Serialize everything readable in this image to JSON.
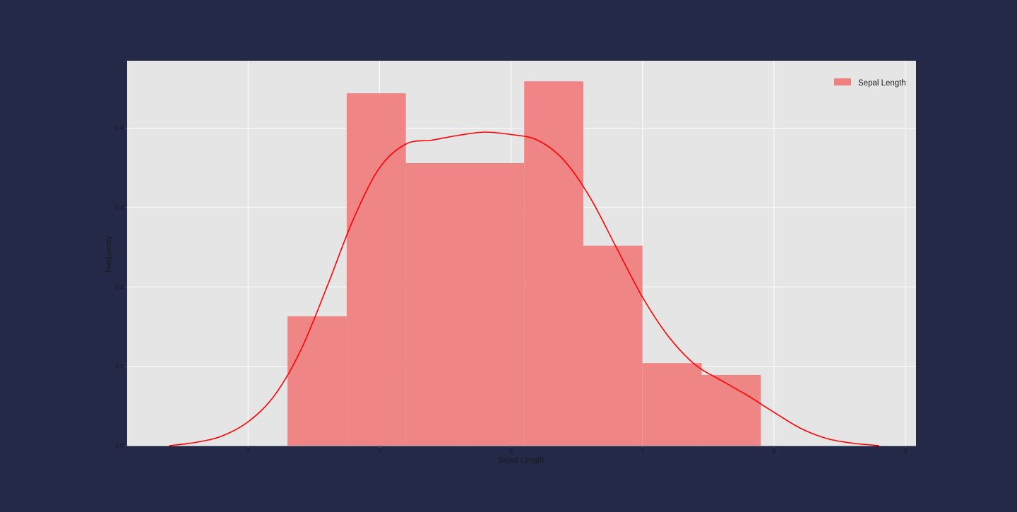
{
  "page": {
    "background": "#232946"
  },
  "chart_data": {
    "type": "bar",
    "subtype": "histogram-with-kde",
    "title": "",
    "xlabel": "Sepal Length",
    "ylabel": "Frequency",
    "xlim": [
      3.08,
      9.08
    ],
    "ylim": [
      0,
      0.485
    ],
    "xticks": [
      4,
      5,
      6,
      7,
      8,
      9
    ],
    "yticks": [
      0.0,
      0.1,
      0.2,
      0.3,
      0.4
    ],
    "grid": true,
    "legend": {
      "placement": "top-right",
      "entries": [
        "Sepal Length"
      ]
    },
    "colors": {
      "plot_background": "#e5e5e5",
      "grid": "#ffffff",
      "bars": "#f08080",
      "kde_line": "#ff0000"
    },
    "series": [
      {
        "name": "Sepal Length",
        "kind": "histogram",
        "bins": [
          {
            "x0": 4.3,
            "x1": 4.75,
            "value": 0.163
          },
          {
            "x0": 4.75,
            "x1": 5.2,
            "value": 0.444
          },
          {
            "x0": 5.2,
            "x1": 5.65,
            "value": 0.356
          },
          {
            "x0": 5.65,
            "x1": 6.1,
            "value": 0.356
          },
          {
            "x0": 6.1,
            "x1": 6.55,
            "value": 0.459
          },
          {
            "x0": 6.55,
            "x1": 7.0,
            "value": 0.252
          },
          {
            "x0": 7.0,
            "x1": 7.45,
            "value": 0.104
          },
          {
            "x0": 7.45,
            "x1": 7.9,
            "value": 0.089
          }
        ]
      },
      {
        "kind": "kde",
        "points": [
          [
            3.4,
            0.0
          ],
          [
            3.6,
            0.004
          ],
          [
            3.8,
            0.012
          ],
          [
            4.0,
            0.03
          ],
          [
            4.2,
            0.063
          ],
          [
            4.4,
            0.12
          ],
          [
            4.6,
            0.2
          ],
          [
            4.8,
            0.285
          ],
          [
            5.0,
            0.35
          ],
          [
            5.2,
            0.38
          ],
          [
            5.4,
            0.385
          ],
          [
            5.6,
            0.391
          ],
          [
            5.8,
            0.395
          ],
          [
            6.0,
            0.392
          ],
          [
            6.2,
            0.385
          ],
          [
            6.4,
            0.36
          ],
          [
            6.6,
            0.313
          ],
          [
            6.8,
            0.25
          ],
          [
            7.0,
            0.187
          ],
          [
            7.2,
            0.137
          ],
          [
            7.4,
            0.102
          ],
          [
            7.6,
            0.082
          ],
          [
            7.8,
            0.063
          ],
          [
            8.0,
            0.042
          ],
          [
            8.2,
            0.022
          ],
          [
            8.4,
            0.009
          ],
          [
            8.6,
            0.003
          ],
          [
            8.8,
            0.0
          ]
        ]
      }
    ]
  }
}
